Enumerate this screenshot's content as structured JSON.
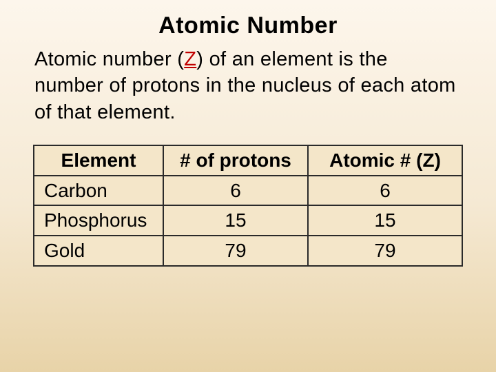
{
  "title": "Atomic Number",
  "title_fontsize": 34,
  "body": {
    "pre_z": "Atomic number (",
    "z": "Z",
    "post_z": ") of an element is the number of protons in the nucleus of each atom of that element."
  },
  "body_fontsize": 29,
  "z_color": "#c00000",
  "table": {
    "header_fontsize": 28,
    "cell_fontsize": 28,
    "columns": [
      "Element",
      "# of protons",
      "Atomic # (Z)"
    ],
    "rows": [
      [
        "Carbon",
        "6",
        "6"
      ],
      [
        "Phosphorus",
        "15",
        "15"
      ],
      [
        "Gold",
        "79",
        "79"
      ]
    ],
    "background_color": "#f4e6c9",
    "border_color": "#2a2a2a"
  },
  "slide_gradient": {
    "top": "#fdf6ec",
    "mid": "#f5e9d3",
    "bottom": "#e8d3a8"
  }
}
